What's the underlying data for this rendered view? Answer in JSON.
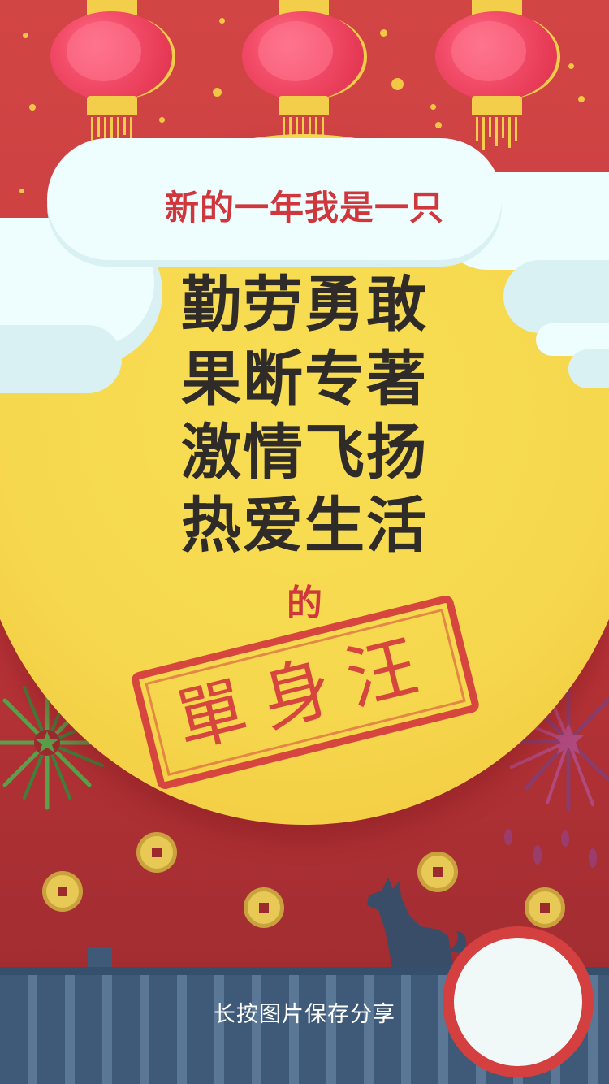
{
  "header": {
    "headline": "新的一年我是一只"
  },
  "verse": {
    "lines": [
      "勤劳勇敢",
      "果断专著",
      "激情飞扬",
      "热爱生活"
    ],
    "connector": "的"
  },
  "stamp": {
    "text": "單身汪"
  },
  "footer": {
    "share_hint": "长按图片保存分享"
  },
  "colors": {
    "background": "#c83a3c",
    "moon": "#f6d84e",
    "accent_red": "#d0373d",
    "lantern": "#f24c68",
    "cloud": "#eefdfd",
    "roof": "#3f5a78"
  },
  "icons": [
    "lantern-icon",
    "coin-icon",
    "firework-icon",
    "dog-silhouette-icon",
    "cloud-icon"
  ]
}
